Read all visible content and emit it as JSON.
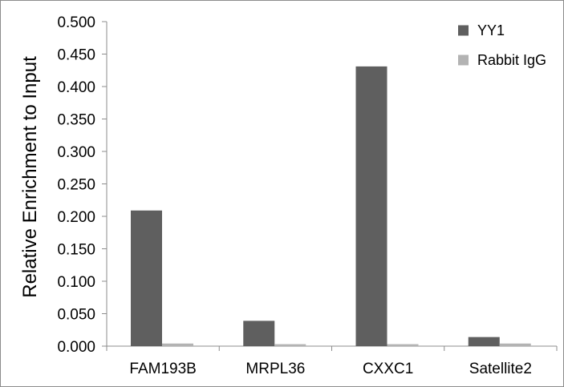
{
  "chart_data": {
    "type": "bar",
    "title": "",
    "xlabel": "",
    "ylabel": "Relative Enrichment to Input",
    "categories": [
      "FAM193B",
      "MRPL36",
      "CXXC1",
      "Satellite2"
    ],
    "series": [
      {
        "name": "YY1",
        "values": [
          0.209,
          0.039,
          0.431,
          0.014
        ],
        "color": "#5f5f5f"
      },
      {
        "name": "Rabbit IgG",
        "values": [
          0.004,
          0.003,
          0.003,
          0.004
        ],
        "color": "#b3b3b3"
      }
    ],
    "ylim": [
      0,
      0.5
    ],
    "yticks": [
      "0.000",
      "0.050",
      "0.100",
      "0.150",
      "0.200",
      "0.250",
      "0.300",
      "0.350",
      "0.400",
      "0.450",
      "0.500"
    ],
    "grid": false,
    "legend_position": "top-right"
  }
}
